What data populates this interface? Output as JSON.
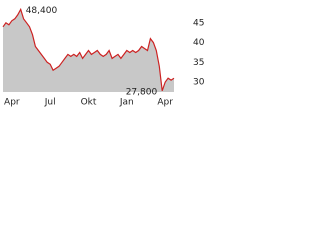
{
  "chart_data": {
    "type": "line",
    "categories": [
      null,
      null,
      null,
      "Apr",
      null,
      null,
      null,
      null,
      null,
      null,
      null,
      null,
      null,
      null,
      null,
      null,
      "Jul",
      null,
      null,
      null,
      null,
      null,
      null,
      null,
      null,
      null,
      null,
      null,
      null,
      "Okt",
      null,
      null,
      null,
      null,
      null,
      null,
      null,
      null,
      null,
      null,
      null,
      null,
      "Jan",
      null,
      null,
      null,
      null,
      null,
      null,
      null,
      null,
      null,
      null,
      null,
      null,
      "Apr",
      null,
      null,
      null
    ],
    "series": [
      {
        "color": "#cc2222",
        "fill": "#c8c8c8",
        "values": [
          44,
          45,
          44.5,
          45.5,
          46,
          47,
          48.4,
          46,
          45,
          44,
          42,
          39,
          38,
          37,
          36,
          35,
          34.5,
          33,
          33.5,
          34,
          35,
          36,
          37,
          36.5,
          37,
          36.5,
          37.5,
          36,
          37,
          38,
          37,
          37.5,
          38,
          37,
          36.5,
          37,
          38,
          36,
          36.5,
          37,
          36,
          37,
          38,
          37.5,
          38,
          37.5,
          38,
          39,
          38.5,
          38,
          41,
          40,
          38,
          34,
          27.8,
          30,
          31,
          30.5,
          31
        ]
      }
    ],
    "annotations": [
      {
        "value": 48.4,
        "label": "48,400"
      },
      {
        "value": 27.8,
        "label": "27,800"
      }
    ],
    "ylim": [
      27.5,
      49.5
    ],
    "yticks": [
      30,
      35,
      40,
      45
    ],
    "grid": false
  }
}
